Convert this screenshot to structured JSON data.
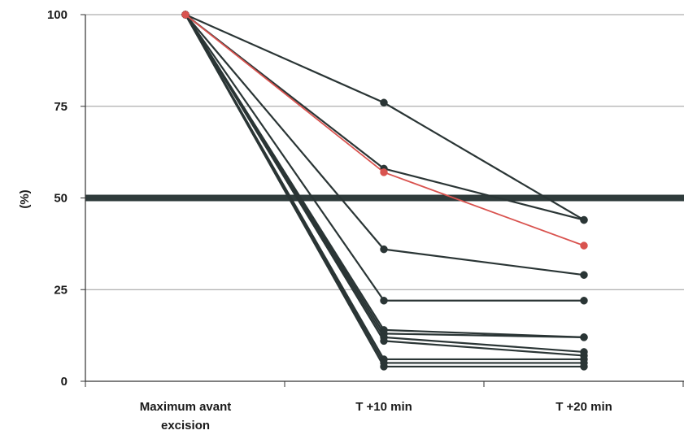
{
  "chart_data": {
    "type": "line",
    "title": "",
    "xlabel": "",
    "ylabel": "(%)",
    "ylim": [
      0,
      100
    ],
    "yticks": [
      "0",
      "25",
      "50",
      "75",
      "100"
    ],
    "categories": [
      [
        "Maximum avant",
        "excision"
      ],
      [
        "T +10 min"
      ],
      [
        "T +20 min"
      ]
    ],
    "grid": true,
    "reference_line": {
      "y": 50,
      "color": "#2f3b3b"
    },
    "colors": {
      "default": "#2a3535",
      "highlight": "#d9534f"
    },
    "series": [
      {
        "values": [
          100,
          76,
          44
        ],
        "highlight": false
      },
      {
        "values": [
          100,
          58,
          44
        ],
        "highlight": false
      },
      {
        "values": [
          100,
          57,
          37
        ],
        "highlight": true
      },
      {
        "values": [
          100,
          36,
          29
        ],
        "highlight": false
      },
      {
        "values": [
          100,
          22,
          22
        ],
        "highlight": false
      },
      {
        "values": [
          100,
          14,
          12
        ],
        "highlight": false
      },
      {
        "values": [
          100,
          13,
          12
        ],
        "highlight": false
      },
      {
        "values": [
          100,
          12,
          8
        ],
        "highlight": false
      },
      {
        "values": [
          100,
          11,
          7
        ],
        "highlight": false
      },
      {
        "values": [
          100,
          6,
          6
        ],
        "highlight": false
      },
      {
        "values": [
          100,
          5,
          5
        ],
        "highlight": false
      },
      {
        "values": [
          100,
          4,
          4
        ],
        "highlight": false
      }
    ]
  }
}
